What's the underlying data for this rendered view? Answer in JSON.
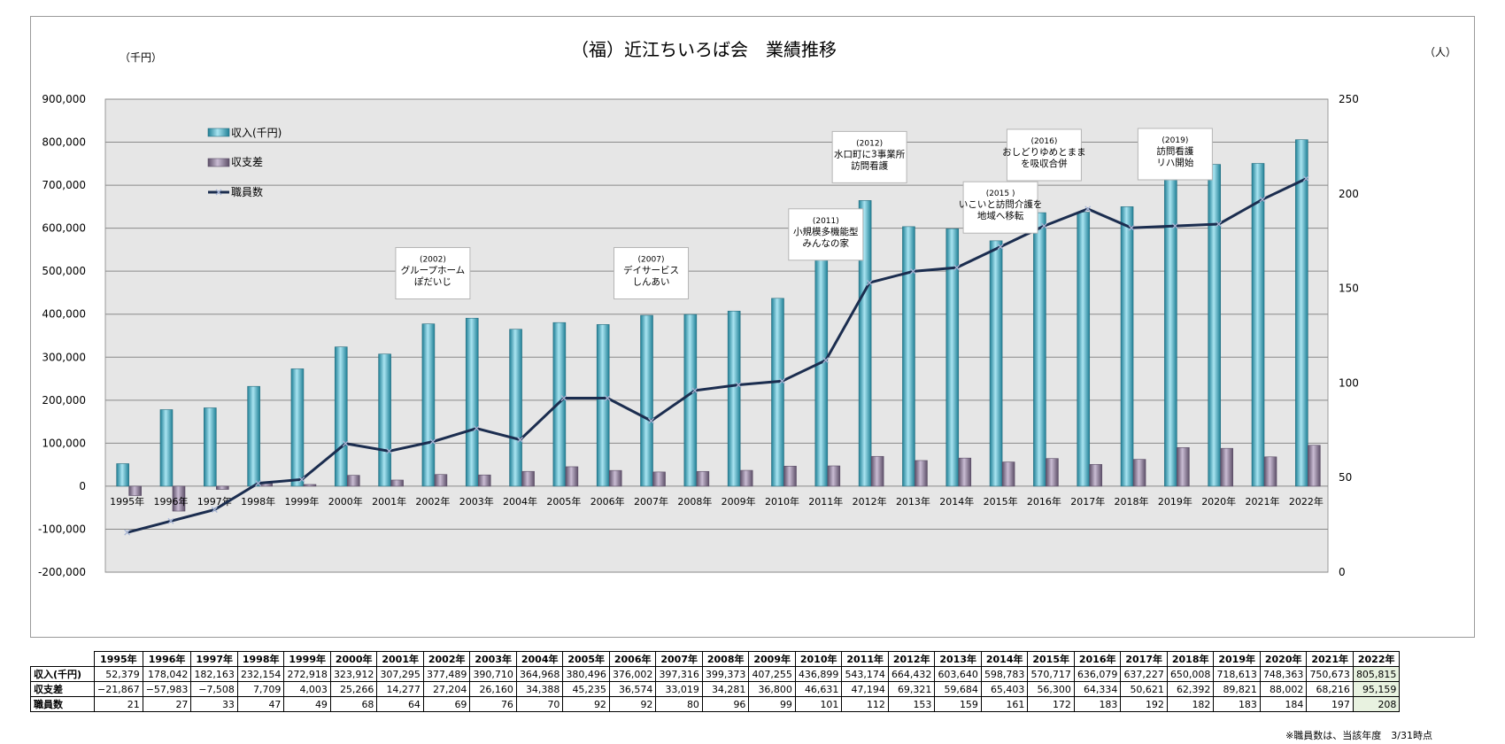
{
  "colors": {
    "plot_bg": "#e6e6e6",
    "bar_income": "#4fb8cf",
    "bar_income_dark": "#1f7f95",
    "bar_balance": "#8c7a99",
    "bar_balance_dark": "#5d4f68",
    "line_staff": "#1b2d4f",
    "marker_staff": "#a8b6d6",
    "grid": "#8a8a8a",
    "last_cell": "#e8f2e0"
  },
  "chart_data": {
    "type": "bar",
    "title": "（福）近江ちいろば会　業績推移",
    "left_unit": "（千円）",
    "right_unit": "（人）",
    "categories": [
      "1995年",
      "1996年",
      "1997年",
      "1998年",
      "1999年",
      "2000年",
      "2001年",
      "2002年",
      "2003年",
      "2004年",
      "2005年",
      "2006年",
      "2007年",
      "2008年",
      "2009年",
      "2010年",
      "2011年",
      "2012年",
      "2013年",
      "2014年",
      "2015年",
      "2016年",
      "2017年",
      "2018年",
      "2019年",
      "2020年",
      "2021年",
      "2022年"
    ],
    "y_left": {
      "min": -200000,
      "max": 900000,
      "step": 100000,
      "tick_labels": [
        "-200,000",
        "-100,000",
        "0",
        "100,000",
        "200,000",
        "300,000",
        "400,000",
        "500,000",
        "600,000",
        "700,000",
        "800,000",
        "900,000"
      ]
    },
    "y_right": {
      "min": 0,
      "max": 250,
      "step": 50,
      "tick_labels": [
        "0",
        "50",
        "100",
        "150",
        "200",
        "250"
      ]
    },
    "series": [
      {
        "name": "収入(千円)",
        "kind": "bar",
        "axis": "left",
        "values": [
          52379,
          178042,
          182163,
          232154,
          272918,
          323912,
          307295,
          377489,
          390710,
          364968,
          380496,
          376002,
          397316,
          399373,
          407255,
          436899,
          543174,
          664432,
          603640,
          598783,
          570717,
          636079,
          637227,
          650008,
          718613,
          748363,
          750673,
          805815
        ]
      },
      {
        "name": "収支差",
        "kind": "bar",
        "axis": "left",
        "values": [
          -21867,
          -57983,
          -7508,
          7709,
          4003,
          25266,
          14277,
          27204,
          26160,
          34388,
          45235,
          36574,
          33019,
          34281,
          36800,
          46631,
          47194,
          69321,
          59684,
          65403,
          56300,
          64334,
          50621,
          62392,
          89821,
          88002,
          68216,
          95159
        ]
      },
      {
        "name": "職員数",
        "kind": "line",
        "axis": "right",
        "values": [
          21,
          27,
          33,
          47,
          49,
          68,
          64,
          69,
          76,
          70,
          92,
          92,
          80,
          96,
          99,
          101,
          112,
          153,
          159,
          161,
          172,
          183,
          192,
          182,
          183,
          184,
          197,
          208
        ]
      }
    ],
    "legend_position": "top-left",
    "grid": true,
    "annotations": [
      {
        "year": "2002年",
        "lines": [
          "(2002)",
          "グループホーム",
          "ぽだいじ"
        ],
        "y": 555000
      },
      {
        "year": "2007年",
        "lines": [
          "(2007)",
          "デイサービス",
          "しんあい"
        ],
        "y": 555000
      },
      {
        "year": "2011年",
        "lines": [
          "(2011)",
          "小規模多機能型",
          "みんなの家"
        ],
        "y": 645000
      },
      {
        "year": "2012年",
        "lines": [
          "(2012)",
          "水口町に3事業所",
          "訪問看護"
        ],
        "y": 825000
      },
      {
        "year": "2015年",
        "lines": [
          "(2015 )",
          "いこいと訪問介護を",
          "地域へ移転"
        ],
        "y": 708000
      },
      {
        "year": "2016年",
        "lines": [
          "(2016)",
          "おしどりゆめとまま",
          "を吸収合併"
        ],
        "y": 830000
      },
      {
        "year": "2019年",
        "lines": [
          "(2019)",
          "訪問看護",
          "リハ開始"
        ],
        "y": 832000
      }
    ]
  },
  "table": {
    "row_labels": [
      "収入(千円)",
      "収支差",
      "職員数"
    ],
    "income_display": [
      "52,379",
      "178,042",
      "182,163",
      "232,154",
      "272,918",
      "323,912",
      "307,295",
      "377,489",
      "390,710",
      "364,968",
      "380,496",
      "376,002",
      "397,316",
      "399,373",
      "407,255",
      "436,899",
      "543,174",
      "664,432",
      "603,640",
      "598,783",
      "570,717",
      "636,079",
      "637,227",
      "650,008",
      "718,613",
      "748,363",
      "750,673",
      "805,815"
    ],
    "balance_display": [
      "−21,867",
      "−57,983",
      "−7,508",
      "7,709",
      "4,003",
      "25,266",
      "14,277",
      "27,204",
      "26,160",
      "34,388",
      "45,235",
      "36,574",
      "33,019",
      "34,281",
      "36,800",
      "46,631",
      "47,194",
      "69,321",
      "59,684",
      "65,403",
      "56,300",
      "64,334",
      "50,621",
      "62,392",
      "89,821",
      "88,002",
      "68,216",
      "95,159"
    ],
    "staff_display": [
      "21",
      "27",
      "33",
      "47",
      "49",
      "68",
      "64",
      "69",
      "76",
      "70",
      "92",
      "92",
      "80",
      "96",
      "99",
      "101",
      "112",
      "153",
      "159",
      "161",
      "172",
      "183",
      "192",
      "182",
      "183",
      "184",
      "197",
      "208"
    ]
  },
  "footnote": "※職員数は、当該年度　3/31時点"
}
